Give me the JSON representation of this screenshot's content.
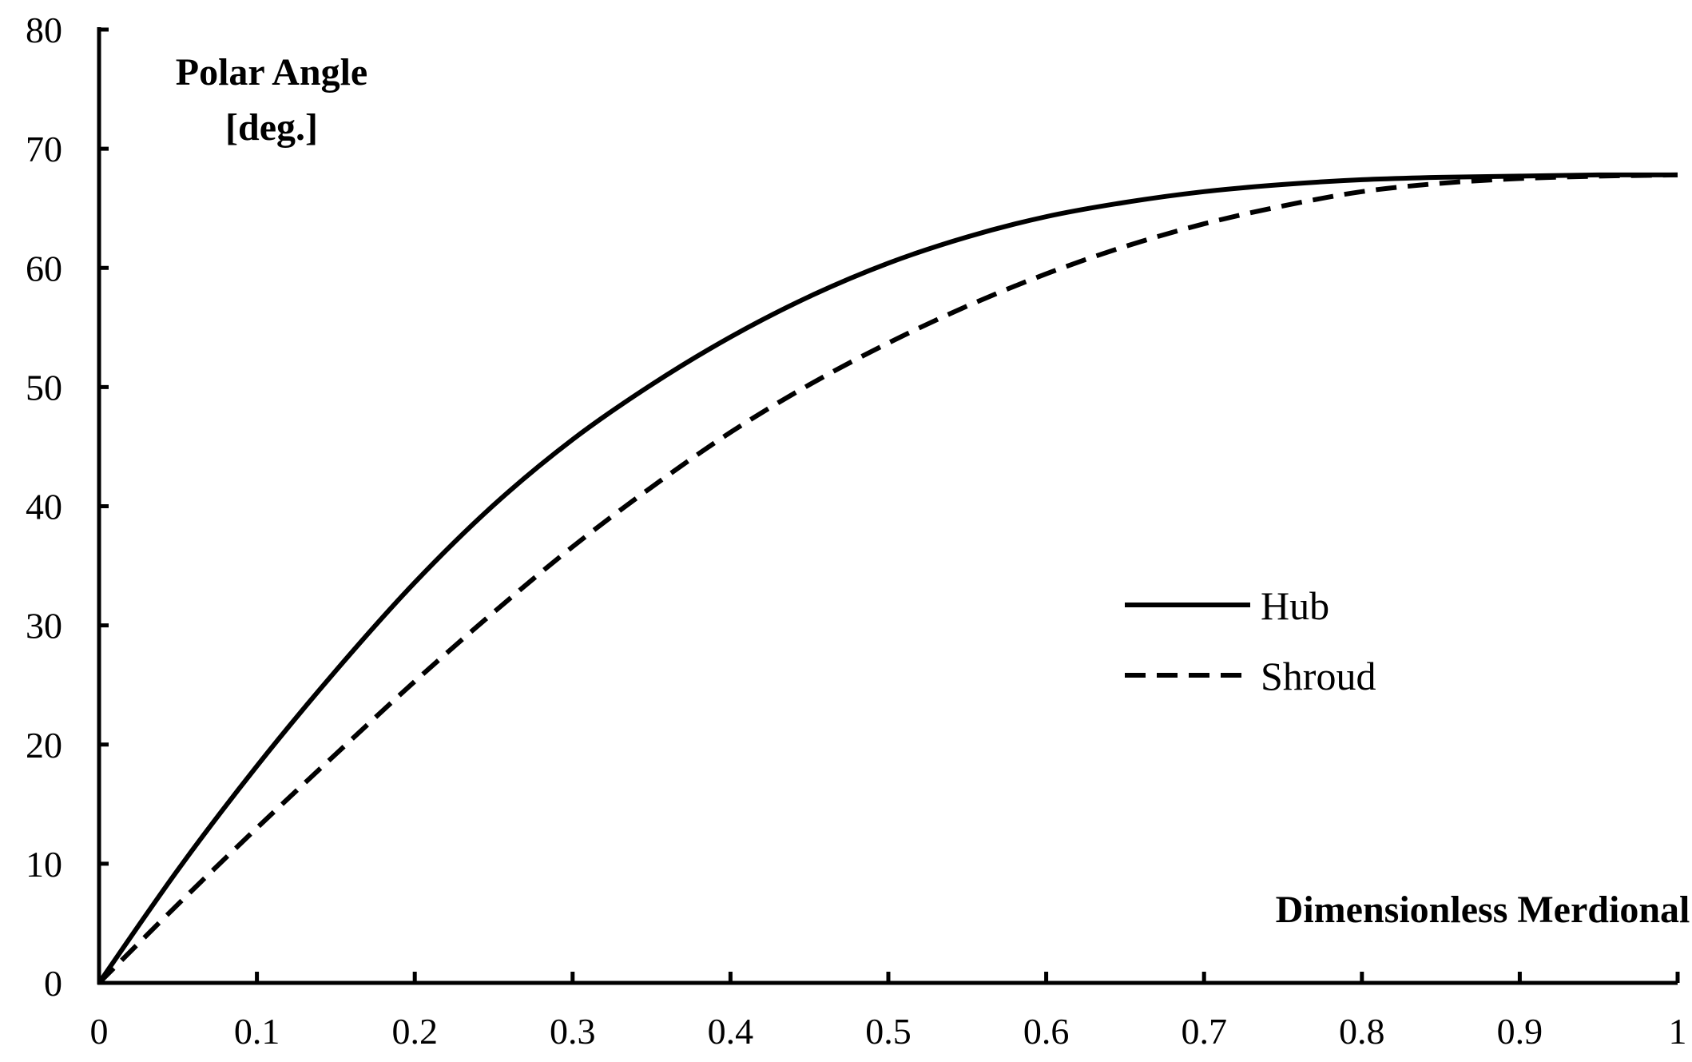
{
  "chart_data": {
    "type": "line",
    "title": "",
    "xlabel": "Dimensionless Merdional Distance",
    "ylabel_lines": [
      "Polar Angle",
      "[deg.]"
    ],
    "xlim": [
      0,
      1
    ],
    "ylim": [
      0,
      80
    ],
    "xticks": [
      "0",
      "0.1",
      "0.2",
      "0.3",
      "0.4",
      "0.5",
      "0.6",
      "0.7",
      "0.8",
      "0.9",
      "1"
    ],
    "yticks": [
      "0",
      "10",
      "20",
      "30",
      "40",
      "50",
      "60",
      "70",
      "80"
    ],
    "grid": false,
    "legend_position": "center-right",
    "x": [
      0,
      0.05,
      0.1,
      0.15,
      0.2,
      0.25,
      0.3,
      0.35,
      0.4,
      0.45,
      0.5,
      0.55,
      0.6,
      0.65,
      0.7,
      0.75,
      0.8,
      0.85,
      0.9,
      0.95,
      1.0
    ],
    "series": [
      {
        "name": "Hub",
        "style": "solid",
        "values": [
          0,
          9.5,
          18.2,
          26.2,
          33.6,
          40.1,
          45.6,
          50.2,
          54.2,
          57.6,
          60.4,
          62.6,
          64.3,
          65.5,
          66.4,
          67.0,
          67.4,
          67.6,
          67.7,
          67.8,
          67.8
        ]
      },
      {
        "name": "Shroud",
        "style": "dashed",
        "values": [
          0,
          6.6,
          13.0,
          19.2,
          25.3,
          31.1,
          36.6,
          41.6,
          46.2,
          50.2,
          53.7,
          56.8,
          59.5,
          61.8,
          63.7,
          65.2,
          66.4,
          67.1,
          67.5,
          67.7,
          67.8
        ]
      }
    ]
  }
}
